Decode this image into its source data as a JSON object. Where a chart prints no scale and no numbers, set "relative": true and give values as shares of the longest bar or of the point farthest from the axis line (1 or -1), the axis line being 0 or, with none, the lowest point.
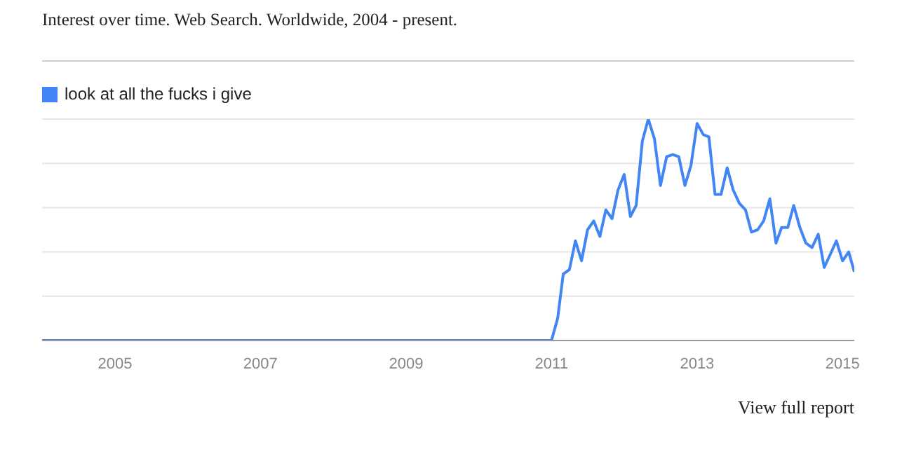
{
  "chart_data": {
    "type": "line",
    "title": "Interest over time. Web Search. Worldwide, 2004 - present.",
    "relative": true,
    "legend": "top left",
    "grid": "y",
    "marker": "none",
    "xlim": [
      "2004-01",
      "2015-03"
    ],
    "xticks": [
      {
        "value": "2005-01",
        "label": "2005"
      },
      {
        "value": "2007-01",
        "label": "2007"
      },
      {
        "value": "2009-01",
        "label": "2009"
      },
      {
        "value": "2011-01",
        "label": "2011"
      },
      {
        "value": "2013-01",
        "label": "2013"
      },
      {
        "value": "2015-01",
        "label": "2015"
      }
    ],
    "x": [
      "2004-01",
      "2011-01",
      "2011-02",
      "2011-03",
      "2011-04",
      "2011-05",
      "2011-06",
      "2011-07",
      "2011-08",
      "2011-09",
      "2011-10",
      "2011-11",
      "2011-12",
      "2012-01",
      "2012-02",
      "2012-03",
      "2012-04",
      "2012-05",
      "2012-06",
      "2012-07",
      "2012-08",
      "2012-09",
      "2012-10",
      "2012-11",
      "2012-12",
      "2013-01",
      "2013-02",
      "2013-03",
      "2013-04",
      "2013-05",
      "2013-06",
      "2013-07",
      "2013-08",
      "2013-09",
      "2013-10",
      "2013-11",
      "2013-12",
      "2014-01",
      "2014-02",
      "2014-03",
      "2014-04",
      "2014-05",
      "2014-06",
      "2014-07",
      "2014-08",
      "2014-09",
      "2014-10",
      "2014-11",
      "2014-12",
      "2015-01",
      "2015-02",
      "2015-03"
    ],
    "series": [
      {
        "name": "look at all the fucks i give",
        "color": "#4285f4",
        "values": [
          0,
          0,
          0.1,
          0.3,
          0.32,
          0.45,
          0.36,
          0.5,
          0.54,
          0.47,
          0.59,
          0.55,
          0.68,
          0.75,
          0.56,
          0.61,
          0.9,
          1.0,
          0.91,
          0.7,
          0.83,
          0.84,
          0.83,
          0.7,
          0.79,
          0.98,
          0.93,
          0.92,
          0.66,
          0.66,
          0.78,
          0.68,
          0.62,
          0.59,
          0.49,
          0.5,
          0.54,
          0.64,
          0.44,
          0.51,
          0.51,
          0.61,
          0.51,
          0.44,
          0.42,
          0.48,
          0.33,
          0.39,
          0.45,
          0.36,
          0.4,
          0.31
        ]
      }
    ],
    "annotations": [
      "View full report"
    ]
  }
}
